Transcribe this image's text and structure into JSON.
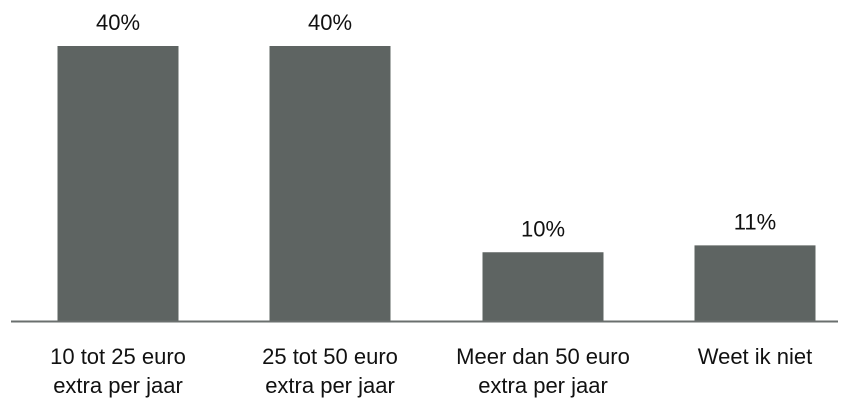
{
  "chart_data": {
    "type": "bar",
    "categories": [
      [
        "10 tot 25 euro",
        "extra per jaar"
      ],
      [
        "25 tot 50 euro",
        "extra per jaar"
      ],
      [
        "Meer dan 50 euro",
        "extra per jaar"
      ],
      [
        "Weet ik niet"
      ]
    ],
    "values": [
      40,
      40,
      10,
      11
    ],
    "data_labels": [
      "40%",
      "40%",
      "10%",
      "11%"
    ],
    "title": "",
    "xlabel": "",
    "ylabel": "",
    "ylim": [
      0,
      40
    ],
    "grid": false,
    "legend": "none",
    "colors": {
      "bar": "#5e6462",
      "axis": "#6a6f6e",
      "text": "#111111"
    }
  }
}
